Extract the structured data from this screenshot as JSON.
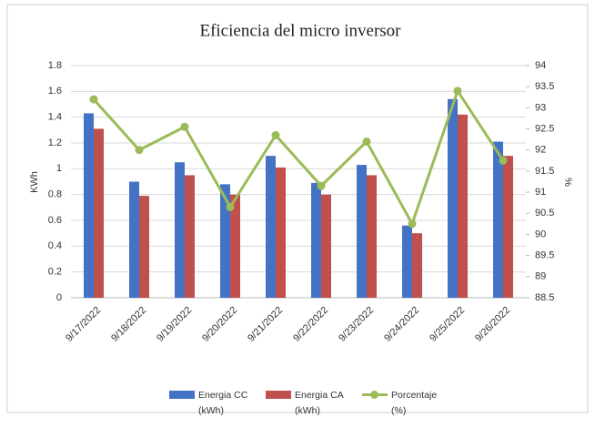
{
  "chart_data": {
    "type": "bar-line",
    "title": "Eficiencia del micro inversor",
    "y_label": "KWh",
    "y2_label": "%",
    "categories": [
      "9/17/2022",
      "9/18/2022",
      "9/19/2022",
      "9/20/2022",
      "9/21/2022",
      "9/22/2022",
      "9/23/2022",
      "9/24/2022",
      "9/25/2022",
      "9/26/2022"
    ],
    "series": [
      {
        "name": "Energia CC (kWh)",
        "type": "bar",
        "color": "#4472c4",
        "values": [
          1.43,
          0.9,
          1.05,
          0.88,
          1.1,
          0.89,
          1.03,
          0.56,
          1.54,
          1.21
        ]
      },
      {
        "name": "Energia CA (kWh)",
        "type": "bar",
        "color": "#c0504d",
        "values": [
          1.31,
          0.79,
          0.95,
          0.8,
          1.01,
          0.8,
          0.95,
          0.5,
          1.42,
          1.1
        ]
      },
      {
        "name": "Porcentaje (%)",
        "type": "line",
        "axis": "y2",
        "color": "#9bbb59",
        "values": [
          93.2,
          92.0,
          92.55,
          90.65,
          92.35,
          91.15,
          92.2,
          90.25,
          93.4,
          91.75
        ]
      }
    ],
    "ylim": [
      0,
      1.8
    ],
    "yticks": [
      0,
      0.2,
      0.4,
      0.6,
      0.8,
      1,
      1.2,
      1.4,
      1.6,
      1.8
    ],
    "y2lim": [
      88.5,
      94
    ],
    "y2ticks": [
      88.5,
      89,
      89.5,
      90,
      90.5,
      91,
      91.5,
      92,
      92.5,
      93,
      93.5,
      94
    ],
    "grid": true
  }
}
